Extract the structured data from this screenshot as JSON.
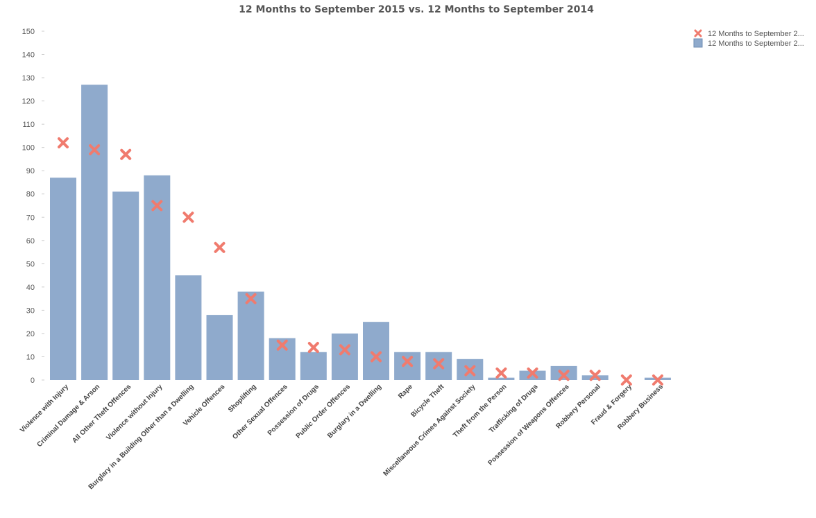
{
  "chart_data": {
    "type": "bar",
    "title": "12 Months to September 2015 vs. 12 Months to September 2014",
    "xlabel": "",
    "ylabel": "",
    "ylim": [
      0,
      150
    ],
    "yticks": [
      0,
      10,
      20,
      30,
      40,
      50,
      60,
      70,
      80,
      90,
      100,
      110,
      120,
      130,
      140,
      150
    ],
    "grid": false,
    "legend_position": "top-right",
    "categories": [
      "Violence with Injury",
      "Criminal Damage & Arson",
      "All Other Theft Offences",
      "Violence without Injury",
      "Burglary in a Building Other than a Dwelling",
      "Vehicle Offences",
      "Shoplifting",
      "Other Sexual Offences",
      "Possession of Drugs",
      "Public Order Offences",
      "Burglary in a Dwelling",
      "Rape",
      "Bicycle Theft",
      "Miscellaneous Crimes Against Society",
      "Theft from the Person",
      "Trafficking of Drugs",
      "Possession of Weapons Offences",
      "Robbery Personal",
      "Fraud & Forgery",
      "Robbery Business"
    ],
    "series": [
      {
        "name": "12 Months to September 2...",
        "kind": "marker",
        "color": "#f07b6e",
        "values": [
          102,
          99,
          97,
          75,
          70,
          57,
          35,
          15,
          14,
          13,
          10,
          8,
          7,
          4,
          3,
          3,
          2,
          2,
          0,
          0
        ]
      },
      {
        "name": "12 Months to September 2...",
        "kind": "bar",
        "color": "#8faacc",
        "values": [
          87,
          127,
          81,
          88,
          45,
          28,
          38,
          18,
          12,
          20,
          25,
          12,
          12,
          9,
          1,
          4,
          6,
          2,
          0,
          1
        ]
      }
    ]
  }
}
